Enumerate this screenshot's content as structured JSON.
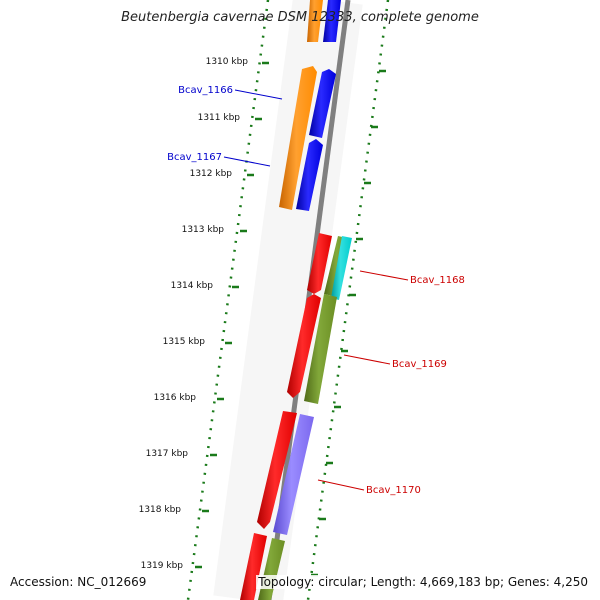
{
  "title": "Beutenbergia cavernae DSM 12333, complete genome",
  "footer": {
    "accession_label": "Accession:",
    "accession": "NC_012669",
    "topology_label": "Topology:",
    "topology": "circular",
    "length_label": "Length:",
    "length": "4,669,183 bp",
    "genes_label": "Genes:",
    "genes": "4,250"
  },
  "ticks": [
    {
      "label": "1310 kbp"
    },
    {
      "label": "1311 kbp"
    },
    {
      "label": "1312 kbp"
    },
    {
      "label": "1313 kbp"
    },
    {
      "label": "1314 kbp"
    },
    {
      "label": "1315 kbp"
    },
    {
      "label": "1316 kbp"
    },
    {
      "label": "1317 kbp"
    },
    {
      "label": "1318 kbp"
    },
    {
      "label": "1319 kbp"
    }
  ],
  "gene_labels": [
    {
      "label": "Bcav_1166",
      "color": "#0000cc"
    },
    {
      "label": "Bcav_1167",
      "color": "#0000cc"
    },
    {
      "label": "Bcav_1168",
      "color": "#cc0000"
    },
    {
      "label": "Bcav_1169",
      "color": "#cc0000"
    },
    {
      "label": "Bcav_1170",
      "color": "#cc0000"
    }
  ],
  "colors": {
    "backbone": "#808080",
    "tick": "#1a7a1a",
    "orange": "#ff8c00",
    "blue": "#0000ee",
    "red": "#ff0000",
    "olive": "#6b8e23",
    "cyan": "#00cccc",
    "purple": "#7b68ee"
  }
}
